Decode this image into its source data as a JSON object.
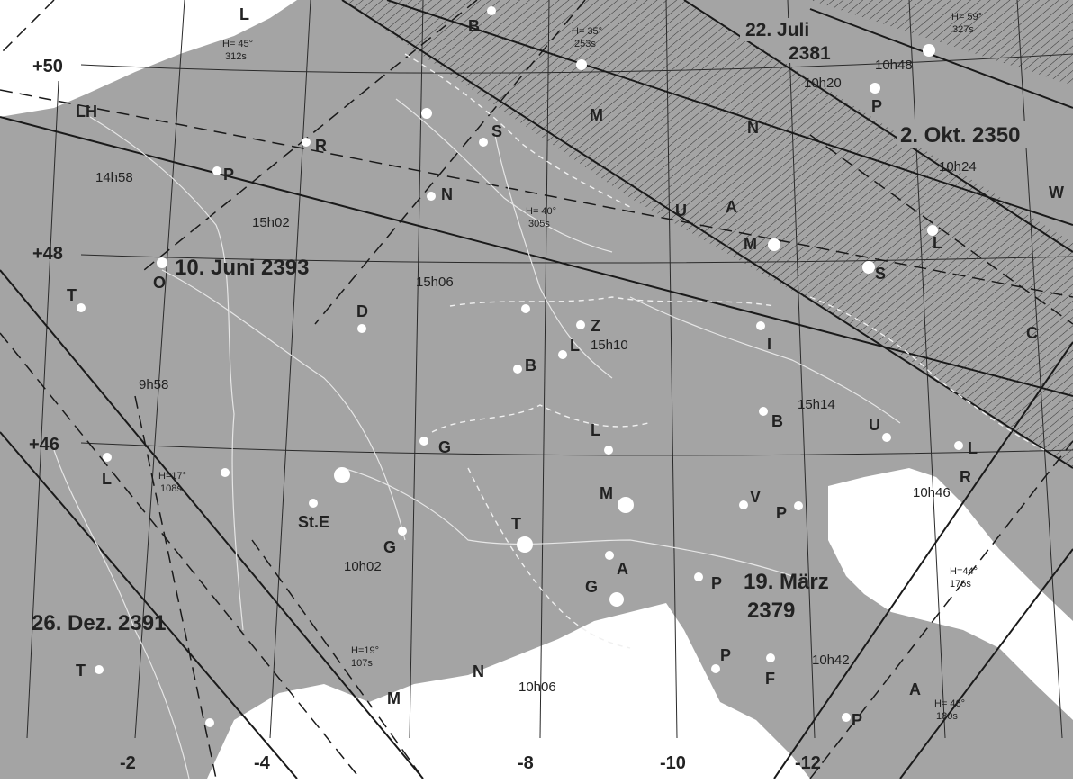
{
  "map": {
    "latitude_labels": [
      "+50",
      "+48",
      "+46"
    ],
    "longitude_labels": [
      "-2",
      "-4",
      "-8",
      "-10",
      "-12"
    ],
    "eclipse_labels": {
      "juli_line1": "22. Juli",
      "juli_line2": "2381",
      "okt": "2. Okt. 2350",
      "juni": "10. Juni 2393",
      "dez": "26. Dez. 2391",
      "maerz_line1": "19. März",
      "maerz_line2": "2379"
    },
    "time_labels": [
      "10h48",
      "10h20",
      "10h24",
      "14h58",
      "15h02",
      "15h06",
      "15h10",
      "15h14",
      "9h58",
      "10h02",
      "10h06",
      "10h42",
      "10h46"
    ],
    "altitude_labels": [
      {
        "h": "H= 45°",
        "s": "312s"
      },
      {
        "h": "H= 35°",
        "s": "253s"
      },
      {
        "h": "H= 59°",
        "s": "327s"
      },
      {
        "h": "H= 40°",
        "s": "305s"
      },
      {
        "h": "H=17°",
        "s": "108s"
      },
      {
        "h": "H=19°",
        "s": "107s"
      },
      {
        "h": "H=44°",
        "s": "176s"
      },
      {
        "h": "H= 46°",
        "s": "180s"
      }
    ],
    "city_labels": [
      "L",
      "B",
      "LH",
      "R",
      "S",
      "P",
      "N",
      "T",
      "O",
      "D",
      "Z",
      "L",
      "B",
      "G",
      "L",
      "St.E",
      "M",
      "T",
      "A",
      "G",
      "P",
      "V",
      "P",
      "B",
      "U",
      "R",
      "L",
      "I",
      "S",
      "C",
      "W",
      "P",
      "U",
      "A",
      "M",
      "L",
      "N",
      "M",
      "P",
      "F",
      "A",
      "P",
      "N",
      "M",
      "T",
      "L",
      "G"
    ],
    "colors": {
      "land": "#a4a4a4",
      "sea": "#ffffff",
      "lines": "#2a2a2a"
    }
  }
}
